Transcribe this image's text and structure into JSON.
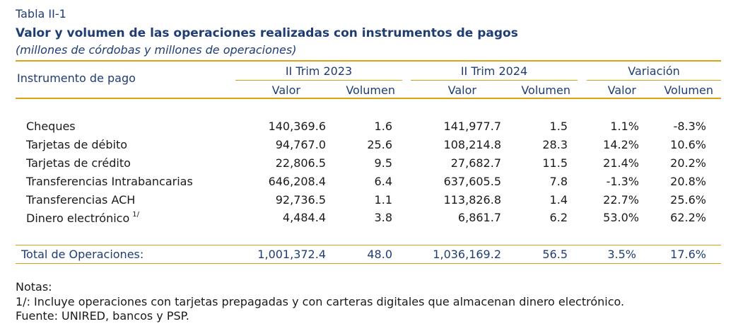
{
  "table": {
    "label": "Tabla II-1",
    "title": "Valor y volumen de las operaciones realizadas con instrumentos de pagos",
    "subtitle": "(millones de córdobas y millones de operaciones)"
  },
  "header": {
    "row_label": "Instrumento de pago",
    "groups": [
      "II Trim 2023",
      "II Trim 2024",
      "Variación"
    ],
    "subcolumns": [
      "Valor",
      "Volumen",
      "Valor",
      "Volumen",
      "Valor",
      "Volumen"
    ]
  },
  "rows": [
    {
      "label": "Cheques",
      "note": "",
      "values": [
        "140,369.6",
        "1.6",
        "141,977.7",
        "1.5",
        "1.1%",
        "-8.3%"
      ]
    },
    {
      "label": "Tarjetas de débito",
      "note": "",
      "values": [
        "94,767.0",
        "25.6",
        "108,214.8",
        "28.3",
        "14.2%",
        "10.6%"
      ]
    },
    {
      "label": "Tarjetas de crédito",
      "note": "",
      "values": [
        "22,806.5",
        "9.5",
        "27,682.7",
        "11.5",
        "21.4%",
        "20.2%"
      ]
    },
    {
      "label": "Transferencias Intrabancarias",
      "note": "",
      "values": [
        "646,208.4",
        "6.4",
        "637,605.5",
        "7.8",
        "-1.3%",
        "20.8%"
      ]
    },
    {
      "label": "Transferencias ACH",
      "note": "",
      "values": [
        "92,736.5",
        "1.1",
        "113,826.8",
        "1.4",
        "22.7%",
        "25.6%"
      ]
    },
    {
      "label": "Dinero electrónico",
      "note": "1/",
      "values": [
        "4,484.4",
        "3.8",
        "6,861.7",
        "6.2",
        "53.0%",
        "62.2%"
      ]
    }
  ],
  "total": {
    "label": "Total de Operaciones:",
    "values": [
      "1,001,372.4",
      "48.0",
      "1,036,169.2",
      "56.5",
      "3.5%",
      "17.6%"
    ]
  },
  "notes": {
    "heading": "Notas:",
    "lines": [
      "1/: Incluye operaciones con tarjetas prepagadas y con carteras digitales que almacenan dinero electrónico.",
      "Fuente: UNIRED, bancos y PSP."
    ]
  },
  "colors": {
    "title": "#1f3d74",
    "rule": "#d7a416"
  }
}
